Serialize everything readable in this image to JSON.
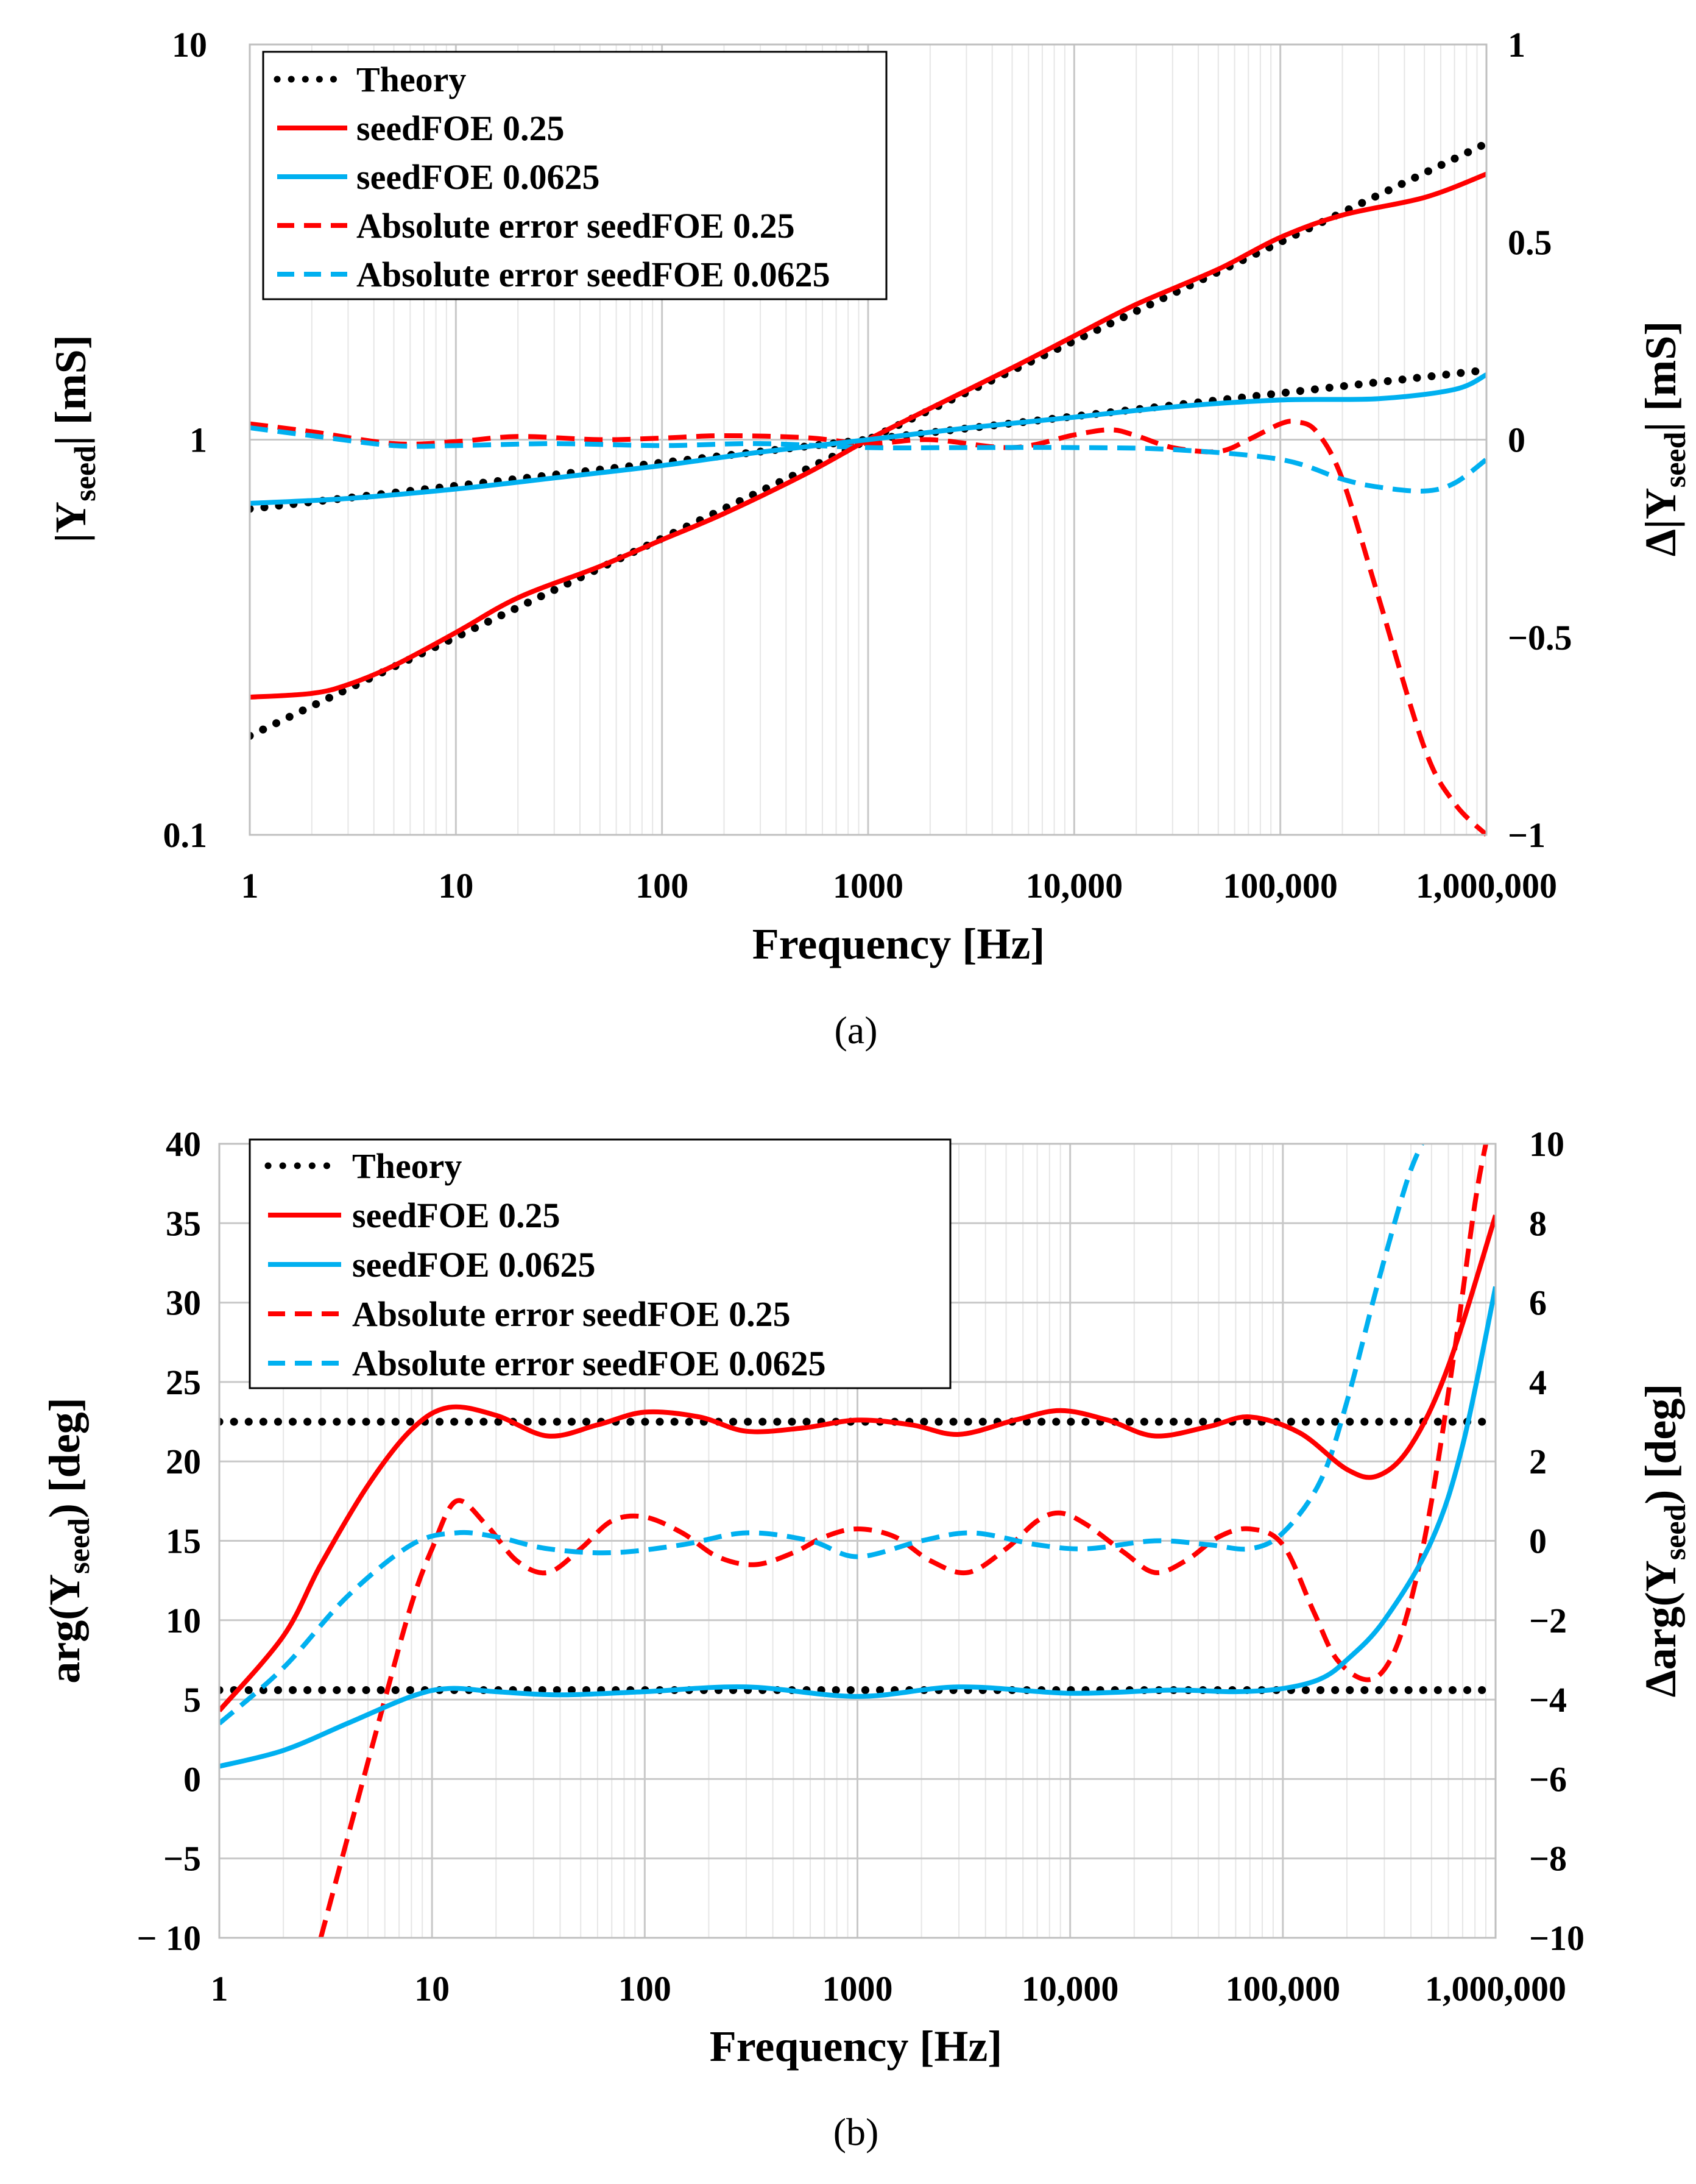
{
  "colors": {
    "theory": "#000000",
    "red": "#ff0000",
    "blue": "#00b0f0",
    "grid": "#d9d9d9"
  },
  "chart_data": [
    {
      "id": "a",
      "type": "line",
      "caption": "(a)",
      "xscale": "log",
      "xlim": [
        1,
        1000000
      ],
      "xticks": [
        1,
        10,
        100,
        1000,
        10000,
        100000,
        1000000
      ],
      "xticklabels": [
        "1",
        "10",
        "100",
        "1000",
        "10,000",
        "100,000",
        "1,000,000"
      ],
      "xlabel": "Frequency [Hz]",
      "ylabel_left": "|Y_seed| [mS]",
      "ylabel_right": "Δ|Y_seed| [mS]",
      "yscale_left": "log",
      "ylim_left": [
        0.1,
        10
      ],
      "yticks_left": [
        0.1,
        1,
        10
      ],
      "yticklabels_left": [
        "0.1",
        "1",
        "10"
      ],
      "ylim_right": [
        -1,
        1
      ],
      "yticks_right": [
        -1,
        -0.5,
        0,
        0.5,
        1
      ],
      "yticklabels_right": [
        "−1",
        "−0.5",
        "0",
        "0.5",
        "1"
      ],
      "legend_position": "top-left",
      "legend": [
        "Theory",
        "seedFOE 0.25",
        "seedFOE 0.0625",
        "Absolute error seedFOE 0.25",
        "Absolute error seedFOE 0.0625"
      ],
      "series": [
        {
          "name": "Theory",
          "style": "dotted",
          "color": "theory",
          "axis": "left",
          "x": [
            1,
            1000000
          ],
          "y": [
            0.178,
            5.62
          ]
        },
        {
          "name": "Theory",
          "style": "dotted",
          "color": "theory",
          "axis": "left",
          "x": [
            1,
            1000000
          ],
          "y": [
            0.668,
            1.5
          ]
        },
        {
          "name": "seedFOE 0.25",
          "style": "solid",
          "color": "red",
          "axis": "left",
          "x": [
            1,
            2,
            3,
            5,
            10,
            20,
            50,
            100,
            200,
            500,
            1000,
            2000,
            5000,
            10000,
            20000,
            50000,
            100000,
            200000,
            500000,
            1000000
          ],
          "y": [
            0.223,
            0.228,
            0.24,
            0.268,
            0.325,
            0.398,
            0.478,
            0.558,
            0.65,
            0.82,
            1.0,
            1.2,
            1.52,
            1.83,
            2.2,
            2.7,
            3.25,
            3.7,
            4.1,
            4.7
          ]
        },
        {
          "name": "seedFOE 0.0625",
          "style": "solid",
          "color": "blue",
          "axis": "left",
          "x": [
            1,
            3,
            10,
            30,
            100,
            300,
            1000,
            3000,
            10000,
            30000,
            100000,
            300000,
            700000,
            1000000
          ],
          "y": [
            0.69,
            0.71,
            0.75,
            0.8,
            0.86,
            0.93,
            1.0,
            1.07,
            1.14,
            1.21,
            1.26,
            1.27,
            1.34,
            1.46
          ]
        },
        {
          "name": "Absolute error seedFOE 0.25",
          "style": "dashed",
          "color": "red",
          "axis": "right",
          "x": [
            1,
            2,
            5,
            10,
            20,
            50,
            100,
            200,
            500,
            1000,
            2000,
            5000,
            10000,
            15000,
            20000,
            30000,
            50000,
            70000,
            100000,
            120000,
            150000,
            200000,
            300000,
            500000,
            700000,
            1000000
          ],
          "y": [
            0.04,
            0.02,
            -0.01,
            -0.005,
            0.008,
            0.0,
            0.004,
            0.01,
            0.005,
            -0.01,
            0.0,
            -0.02,
            0.012,
            0.025,
            0.01,
            -0.02,
            -0.03,
            0.0,
            0.04,
            0.045,
            0.02,
            -0.1,
            -0.4,
            -0.78,
            -0.92,
            -1.0
          ]
        },
        {
          "name": "Absolute error seedFOE 0.0625",
          "style": "dashed",
          "color": "blue",
          "axis": "right",
          "x": [
            1,
            2,
            5,
            10,
            30,
            100,
            300,
            1000,
            3000,
            10000,
            30000,
            100000,
            200000,
            300000,
            500000,
            700000,
            1000000
          ],
          "y": [
            0.03,
            0.01,
            -0.015,
            -0.015,
            -0.01,
            -0.015,
            -0.01,
            -0.02,
            -0.02,
            -0.02,
            -0.025,
            -0.05,
            -0.1,
            -0.12,
            -0.13,
            -0.11,
            -0.05
          ]
        }
      ]
    },
    {
      "id": "b",
      "type": "line",
      "caption": "(b)",
      "xscale": "log",
      "xlim": [
        1,
        1000000
      ],
      "xticks": [
        1,
        10,
        100,
        1000,
        10000,
        100000,
        1000000
      ],
      "xticklabels": [
        "1",
        "10",
        "100",
        "1000",
        "10,000",
        "100,000",
        "1,000,000"
      ],
      "xlabel": "Frequency [Hz]",
      "ylabel_left": "arg(Y_seed) [deg]",
      "ylabel_right": "Δarg(Y_seed) [deg]",
      "yscale_left": "linear",
      "ylim_left": [
        -10,
        40
      ],
      "yticks_left": [
        -10,
        -5,
        0,
        5,
        10,
        15,
        20,
        25,
        30,
        35,
        40
      ],
      "yticklabels_left": [
        "− 10",
        "−5",
        "0",
        "5",
        "10",
        "15",
        "20",
        "25",
        "30",
        "35",
        "40"
      ],
      "ylim_right": [
        -10,
        10
      ],
      "yticks_right": [
        -10,
        -8,
        -6,
        -4,
        -2,
        0,
        2,
        4,
        6,
        8,
        10
      ],
      "yticklabels_right": [
        "−10",
        "−8",
        "−6",
        "−4",
        "−2",
        "0",
        "2",
        "4",
        "6",
        "8",
        "10"
      ],
      "legend_position": "top-left",
      "legend": [
        "Theory",
        "seedFOE 0.25",
        "seedFOE 0.0625",
        "Absolute error seedFOE 0.25",
        "Absolute error seedFOE 0.0625"
      ],
      "series": [
        {
          "name": "Theory",
          "style": "dotted",
          "color": "theory",
          "axis": "left",
          "x": [
            1,
            1000000
          ],
          "y": [
            22.5,
            22.5
          ]
        },
        {
          "name": "Theory",
          "style": "dotted",
          "color": "theory",
          "axis": "left",
          "x": [
            1,
            1000000
          ],
          "y": [
            5.6,
            5.6
          ]
        },
        {
          "name": "seedFOE 0.25",
          "style": "solid",
          "color": "red",
          "axis": "left",
          "x": [
            1,
            2,
            3,
            5,
            8,
            12,
            20,
            35,
            60,
            100,
            180,
            300,
            550,
            1000,
            1800,
            3000,
            5500,
            9000,
            15000,
            25000,
            45000,
            70000,
            120000,
            200000,
            280000,
            400000,
            600000,
            1000000
          ],
          "y": [
            4.3,
            9.0,
            13.5,
            18.5,
            22.0,
            23.4,
            22.9,
            21.6,
            22.3,
            23.1,
            22.8,
            21.9,
            22.1,
            22.6,
            22.3,
            21.7,
            22.6,
            23.2,
            22.6,
            21.6,
            22.2,
            22.8,
            21.8,
            19.5,
            19.1,
            21.0,
            26.0,
            35.5
          ]
        },
        {
          "name": "seedFOE 0.0625",
          "style": "solid",
          "color": "blue",
          "axis": "left",
          "x": [
            1,
            2,
            4,
            8,
            12,
            20,
            40,
            100,
            300,
            1000,
            3000,
            10000,
            30000,
            60000,
            100000,
            150000,
            200000,
            300000,
            500000,
            700000,
            1000000
          ],
          "y": [
            0.8,
            1.8,
            3.5,
            5.2,
            5.7,
            5.5,
            5.3,
            5.5,
            5.8,
            5.2,
            5.8,
            5.4,
            5.6,
            5.5,
            5.7,
            6.3,
            7.5,
            10.0,
            15.0,
            21.0,
            31.0
          ]
        },
        {
          "name": "Absolute error seedFOE 0.25",
          "style": "dashed",
          "color": "red",
          "axis": "right",
          "x": [
            3,
            4,
            6,
            8,
            10,
            13,
            18,
            25,
            35,
            50,
            70,
            100,
            150,
            220,
            330,
            500,
            700,
            1000,
            1500,
            2200,
            3300,
            5000,
            7000,
            9000,
            12000,
            18000,
            25000,
            35000,
            50000,
            70000,
            100000,
            140000,
            180000,
            250000,
            320000,
            400000,
            500000,
            650000,
            800000,
            900000
          ],
          "y": [
            -10.0,
            -7.5,
            -4.0,
            -1.6,
            -0.2,
            1.0,
            0.4,
            -0.5,
            -0.8,
            -0.2,
            0.5,
            0.6,
            0.2,
            -0.4,
            -0.6,
            -0.3,
            0.1,
            0.3,
            0.1,
            -0.5,
            -0.8,
            -0.2,
            0.5,
            0.7,
            0.4,
            -0.3,
            -0.8,
            -0.5,
            0.1,
            0.3,
            -0.1,
            -1.8,
            -3.0,
            -3.5,
            -3.0,
            -1.5,
            1.0,
            5.0,
            8.5,
            10.0
          ]
        },
        {
          "name": "Absolute error seedFOE 0.0625",
          "style": "dashed",
          "color": "blue",
          "axis": "right",
          "x": [
            1,
            2,
            4,
            8,
            13,
            20,
            35,
            70,
            150,
            300,
            600,
            1000,
            2000,
            3500,
            7000,
            12000,
            25000,
            45000,
            70000,
            100000,
            150000,
            200000,
            280000,
            380000,
            450000
          ],
          "y": [
            -4.6,
            -3.2,
            -1.4,
            -0.1,
            0.2,
            0.1,
            -0.2,
            -0.3,
            -0.1,
            0.2,
            0.0,
            -0.4,
            0.0,
            0.2,
            -0.1,
            -0.2,
            0.0,
            -0.1,
            -0.2,
            0.2,
            1.5,
            3.5,
            6.5,
            9.0,
            10.0
          ]
        }
      ]
    }
  ]
}
